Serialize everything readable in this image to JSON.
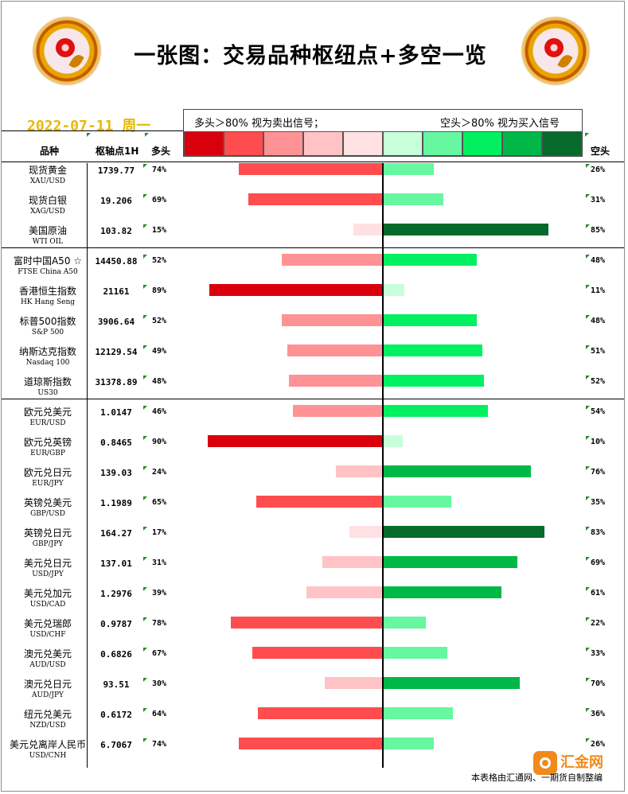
{
  "header": {
    "title": "一张图：交易品种枢纽点+多空一览",
    "date": "2022-07-11 周一",
    "legend_left": "多头＞80% 视为卖出信号；",
    "legend_right": "空头＞80% 视为买入信号"
  },
  "legend_colors": [
    "#d9000b",
    "#ff4d4f",
    "#ff9295",
    "#ffc3c6",
    "#ffe0e3",
    "#c6ffd9",
    "#66f7a0",
    "#00f060",
    "#00b847",
    "#056a2b"
  ],
  "columns": {
    "name": "品种",
    "pivot": "枢轴点1H",
    "long": "多头",
    "short": "空头"
  },
  "footer": {
    "credit": "本表格由汇通网、一期货自制整编",
    "brand": "汇金网"
  },
  "chart_data": {
    "type": "bar",
    "categories": [
      "现货黄金",
      "现货白银",
      "美国原油",
      "富时中国A50 ☆",
      "香港恒生指数",
      "标普500指数",
      "纳斯达克指数",
      "道琼斯指数",
      "欧元兑美元",
      "欧元兑英镑",
      "欧元兑日元",
      "英镑兑美元",
      "英镑兑日元",
      "美元兑日元",
      "美元兑加元",
      "美元兑瑞郎",
      "澳元兑美元",
      "澳元兑日元",
      "纽元兑美元",
      "美元兑离岸人民币"
    ],
    "codes": [
      "XAU/USD",
      "XAG/USD",
      "WTI OIL",
      "FTSE China A50",
      "HK Hang Seng",
      "S&P 500",
      "Nasdaq 100",
      "US30",
      "EUR/USD",
      "EUR/GBP",
      "EUR/JPY",
      "GBP/USD",
      "GBP/JPY",
      "USD/JPY",
      "USD/CAD",
      "USD/CHF",
      "AUD/USD",
      "AUD/JPY",
      "NZD/USD",
      "USD/CNH"
    ],
    "pivot": [
      "1739.77",
      "19.206",
      "103.82",
      "14450.88",
      "21161",
      "3906.64",
      "12129.54",
      "31378.89",
      "1.0147",
      "0.8465",
      "139.03",
      "1.1989",
      "164.27",
      "137.01",
      "1.2976",
      "0.9787",
      "0.6826",
      "93.51",
      "0.6172",
      "6.7067"
    ],
    "series": [
      {
        "name": "多头",
        "values": [
          74,
          69,
          15,
          52,
          89,
          52,
          49,
          48,
          46,
          90,
          24,
          65,
          17,
          31,
          39,
          78,
          67,
          30,
          64,
          74
        ]
      },
      {
        "name": "空头",
        "values": [
          26,
          31,
          85,
          48,
          11,
          48,
          51,
          52,
          54,
          10,
          76,
          35,
          83,
          69,
          61,
          22,
          33,
          70,
          36,
          26
        ]
      }
    ],
    "long_labels": [
      "74%",
      "69%",
      "15%",
      "52%",
      "89%",
      "52%",
      "49%",
      "48%",
      "46%",
      "90%",
      "24%",
      "65%",
      "17%",
      "31%",
      "39%",
      "78%",
      "67%",
      "30%",
      "64%",
      "74%"
    ],
    "short_labels": [
      "26%",
      "31%",
      "85%",
      "48%",
      "11%",
      "48%",
      "51%",
      "52%",
      "54%",
      "10%",
      "76%",
      "35%",
      "83%",
      "69%",
      "61%",
      "22%",
      "33%",
      "70%",
      "36%",
      "26%"
    ],
    "xlim": [
      0,
      100
    ],
    "groups": [
      [
        0,
        2
      ],
      [
        3,
        7
      ],
      [
        8,
        19
      ]
    ]
  }
}
